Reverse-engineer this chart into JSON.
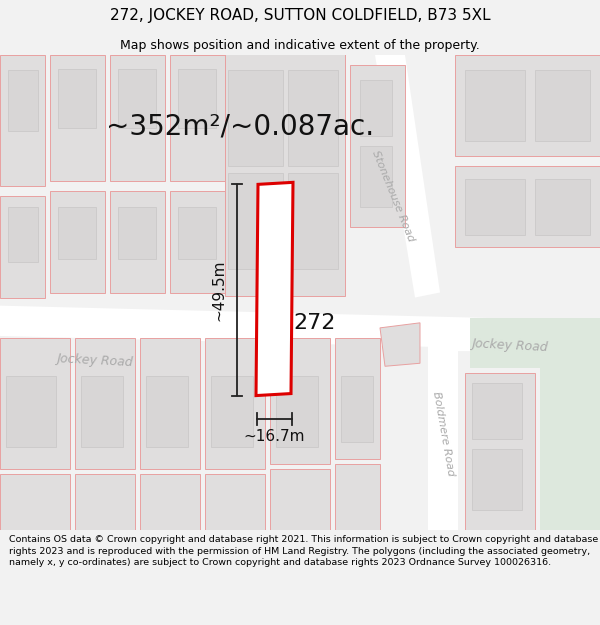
{
  "title": "272, JOCKEY ROAD, SUTTON COLDFIELD, B73 5XL",
  "subtitle": "Map shows position and indicative extent of the property.",
  "area_label": "~352m²/~0.087ac.",
  "width_label": "~16.7m",
  "height_label": "~49.5m",
  "number_label": "272",
  "footer": "Contains OS data © Crown copyright and database right 2021. This information is subject to Crown copyright and database rights 2023 and is reproduced with the permission of HM Land Registry. The polygons (including the associated geometry, namely x, y co-ordinates) are subject to Crown copyright and database rights 2023 Ordnance Survey 100026316.",
  "bg_color": "#f2f2f2",
  "map_bg": "#f0eeee",
  "road_fill": "#ffffff",
  "bldg_fill": "#e0dede",
  "bldg_stroke": "#e8a0a0",
  "bldg_stroke_lw": 0.7,
  "prop_fill": "#ffffff",
  "prop_stroke": "#dd0000",
  "prop_stroke_lw": 2.2,
  "road_label_color": "#aaaaaa",
  "dim_color": "#222222",
  "title_fontsize": 11,
  "subtitle_fontsize": 9,
  "area_fontsize": 20,
  "label_fontsize": 11,
  "number_fontsize": 16,
  "footer_fontsize": 6.8,
  "green_fill": "#dde8dd"
}
